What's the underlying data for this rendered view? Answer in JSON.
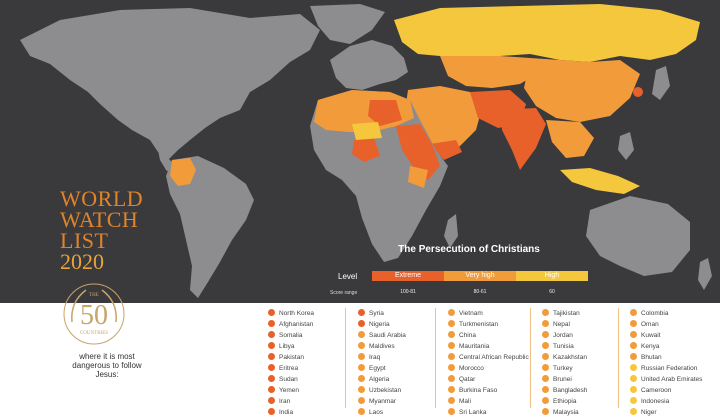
{
  "title": {
    "line1": "WORLD",
    "line2": "WATCH LIST",
    "line3": "2020"
  },
  "legend": {
    "heading": "The Persecution of Christians",
    "level_label": "Level",
    "score_label": "Score range",
    "levels": [
      {
        "name": "Extreme",
        "range": "100-81",
        "color": "#e8602a"
      },
      {
        "name": "Very high",
        "range": "80-61",
        "color": "#f29b3a"
      },
      {
        "name": "High",
        "range": "60",
        "color": "#f5c73d"
      }
    ]
  },
  "logo": {
    "number": "50",
    "top_text": "THE",
    "bottom_text": "COUNTRIES"
  },
  "tagline": "where it is most dangerous to follow Jesus:",
  "colors": {
    "ocean": "#3a3a3c",
    "land": "#8d8d8f",
    "extreme": "#e8602a",
    "very_high": "#f29b3a",
    "high": "#f5c73d",
    "title": "#e0842a",
    "divider": "#f0c089"
  },
  "columns": [
    [
      {
        "label": "North Korea",
        "color": "#e8602a"
      },
      {
        "label": "Afghanistan",
        "color": "#e8602a"
      },
      {
        "label": "Somalia",
        "color": "#e8602a"
      },
      {
        "label": "Libya",
        "color": "#e8602a"
      },
      {
        "label": "Pakistan",
        "color": "#e8602a"
      },
      {
        "label": "Eritrea",
        "color": "#e8602a"
      },
      {
        "label": "Sudan",
        "color": "#e8602a"
      },
      {
        "label": "Yemen",
        "color": "#e8602a"
      },
      {
        "label": "Iran",
        "color": "#e8602a"
      },
      {
        "label": "India",
        "color": "#e8602a"
      }
    ],
    [
      {
        "label": "Syria",
        "color": "#e8602a"
      },
      {
        "label": "Nigeria",
        "color": "#e8602a"
      },
      {
        "label": "Saudi Arabia",
        "color": "#f29b3a"
      },
      {
        "label": "Maldives",
        "color": "#f29b3a"
      },
      {
        "label": "Iraq",
        "color": "#f29b3a"
      },
      {
        "label": "Egypt",
        "color": "#f29b3a"
      },
      {
        "label": "Algeria",
        "color": "#f29b3a"
      },
      {
        "label": "Uzbekistan",
        "color": "#f29b3a"
      },
      {
        "label": "Myanmar",
        "color": "#f29b3a"
      },
      {
        "label": "Laos",
        "color": "#f29b3a"
      }
    ],
    [
      {
        "label": "Vietnam",
        "color": "#f29b3a"
      },
      {
        "label": "Turkmenistan",
        "color": "#f29b3a"
      },
      {
        "label": "China",
        "color": "#f29b3a"
      },
      {
        "label": "Mauritania",
        "color": "#f29b3a"
      },
      {
        "label": "Central African Republic",
        "color": "#f29b3a"
      },
      {
        "label": "Morocco",
        "color": "#f29b3a"
      },
      {
        "label": "Qatar",
        "color": "#f29b3a"
      },
      {
        "label": "Burkina Faso",
        "color": "#f29b3a"
      },
      {
        "label": "Mali",
        "color": "#f29b3a"
      },
      {
        "label": "Sri Lanka",
        "color": "#f29b3a"
      }
    ],
    [
      {
        "label": "Tajikistan",
        "color": "#f29b3a"
      },
      {
        "label": "Nepal",
        "color": "#f29b3a"
      },
      {
        "label": "Jordan",
        "color": "#f29b3a"
      },
      {
        "label": "Tunisia",
        "color": "#f29b3a"
      },
      {
        "label": "Kazakhstan",
        "color": "#f29b3a"
      },
      {
        "label": "Turkey",
        "color": "#f29b3a"
      },
      {
        "label": "Brunei",
        "color": "#f29b3a"
      },
      {
        "label": "Bangladesh",
        "color": "#f29b3a"
      },
      {
        "label": "Ethiopia",
        "color": "#f29b3a"
      },
      {
        "label": "Malaysia",
        "color": "#f29b3a"
      }
    ],
    [
      {
        "label": "Colombia",
        "color": "#f29b3a"
      },
      {
        "label": "Oman",
        "color": "#f29b3a"
      },
      {
        "label": "Kuwait",
        "color": "#f29b3a"
      },
      {
        "label": "Kenya",
        "color": "#f29b3a"
      },
      {
        "label": "Bhutan",
        "color": "#f29b3a"
      },
      {
        "label": "Russian Federation",
        "color": "#f5c73d"
      },
      {
        "label": "United Arab Emirates",
        "color": "#f5c73d"
      },
      {
        "label": "Cameroon",
        "color": "#f5c73d"
      },
      {
        "label": "Indonesia",
        "color": "#f5c73d"
      },
      {
        "label": "Niger",
        "color": "#f5c73d"
      }
    ]
  ]
}
